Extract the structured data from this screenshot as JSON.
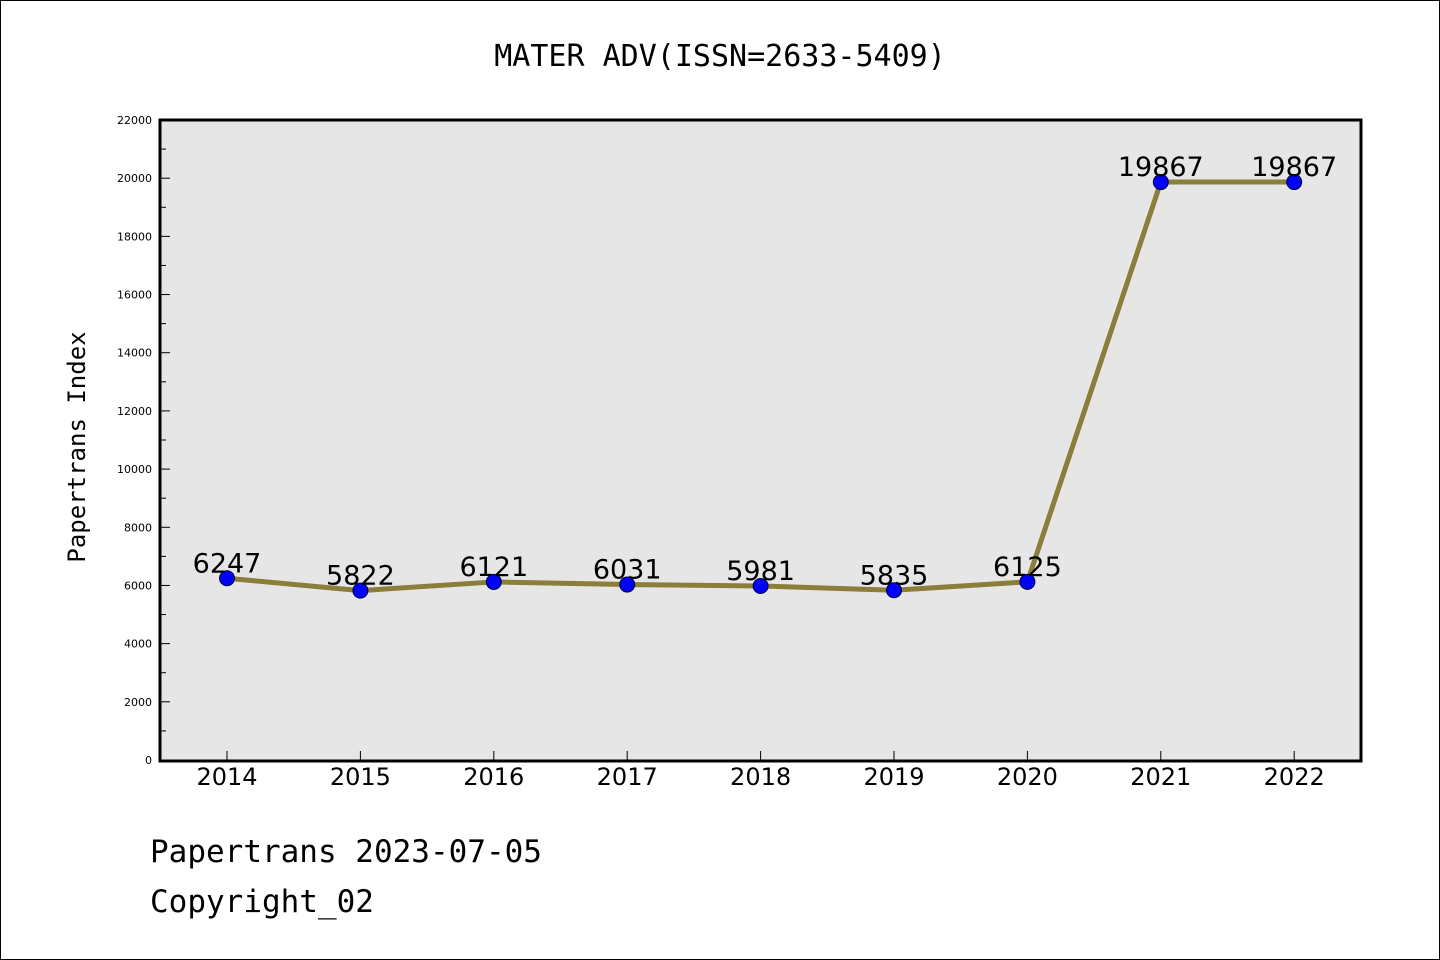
{
  "chart_data": {
    "type": "line",
    "title": "MATER ADV(ISSN=2633-5409)",
    "xlabel": "",
    "ylabel": "Papertrans Index",
    "categories": [
      "2014",
      "2015",
      "2016",
      "2017",
      "2018",
      "2019",
      "2020",
      "2021",
      "2022"
    ],
    "series": [
      {
        "values": [
          6247,
          5822,
          6121,
          6031,
          5981,
          5835,
          6125,
          19867,
          19867
        ]
      }
    ],
    "data_labels": [
      "6247",
      "5822",
      "6121",
      "6031",
      "5981",
      "5835",
      "6125",
      "19867",
      "19867"
    ],
    "ylim": [
      0,
      22000
    ],
    "yticks": [
      0,
      2000,
      4000,
      6000,
      8000,
      10000,
      12000,
      14000,
      16000,
      18000,
      20000,
      22000
    ],
    "ytick_labels": [
      "0",
      "2000",
      "4000",
      "6000",
      "8000",
      "10000",
      "12000",
      "14000",
      "16000",
      "18000",
      "20000",
      "22000"
    ],
    "grid": false,
    "legend": "none",
    "colors": {
      "line": "#8b7d3a",
      "marker": "#0000ff",
      "plot_background": "#e6e6e6"
    }
  },
  "footer": {
    "date_text": "Papertrans 2023-07-05",
    "copyright_text": "Copyright_02"
  }
}
